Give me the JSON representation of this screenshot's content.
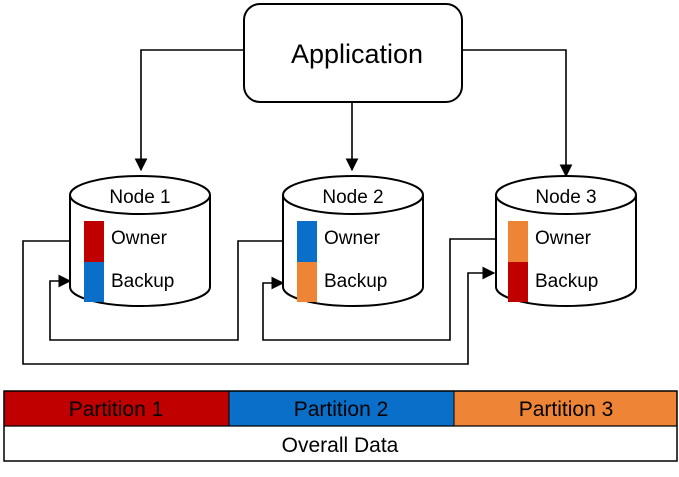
{
  "application": {
    "label": "Application"
  },
  "nodes": [
    {
      "label": "Node 1",
      "owner": {
        "label": "Owner",
        "color": "#c00000"
      },
      "backup": {
        "label": "Backup",
        "color": "#0a6fc8"
      }
    },
    {
      "label": "Node 2",
      "owner": {
        "label": "Owner",
        "color": "#0a6fc8"
      },
      "backup": {
        "label": "Backup",
        "color": "#ee8435"
      }
    },
    {
      "label": "Node 3",
      "owner": {
        "label": "Owner",
        "color": "#ee8435"
      },
      "backup": {
        "label": "Backup",
        "color": "#c00000"
      }
    }
  ],
  "partitions": [
    {
      "label": "Partition 1",
      "color": "#c00000"
    },
    {
      "label": "Partition 2",
      "color": "#0a6fc8"
    },
    {
      "label": "Partition 3",
      "color": "#ee8435"
    }
  ],
  "overall": {
    "label": "Overall Data"
  }
}
